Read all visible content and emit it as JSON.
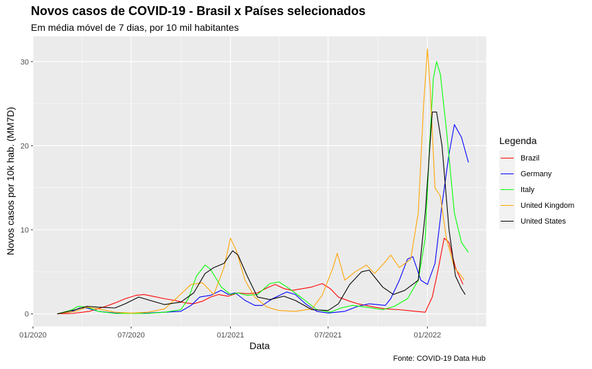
{
  "chart_data": {
    "type": "line",
    "title": "Novos casos de COVID-19 - Brasil x Países selecionados",
    "subtitle": "Em média móvel de 7 dias, por 10 mil habitantes",
    "xlabel": "Data",
    "ylabel": "Novos casos por 10k hab. (MM7D)",
    "caption": "Fonte: COVID-19 Data Hub",
    "legend_title": "Legenda",
    "legend_position": "right",
    "grid": true,
    "xlim": [
      "2020-01-01",
      "2022-04-20"
    ],
    "ylim": [
      -1.5,
      33
    ],
    "x_ticks": [
      {
        "date": "2020-01-01",
        "label": "01/2020"
      },
      {
        "date": "2020-07-01",
        "label": "07/2020"
      },
      {
        "date": "2021-01-01",
        "label": "01/2021"
      },
      {
        "date": "2021-07-01",
        "label": "07/2021"
      },
      {
        "date": "2022-01-01",
        "label": "01/2022"
      }
    ],
    "y_ticks": [
      0,
      10,
      20,
      30
    ],
    "series": [
      {
        "name": "Brazil",
        "color": "#FF0000",
        "points": [
          [
            "2020-02-15",
            0
          ],
          [
            "2020-03-15",
            0.05
          ],
          [
            "2020-04-15",
            0.3
          ],
          [
            "2020-05-15",
            0.9
          ],
          [
            "2020-06-01",
            1.3
          ],
          [
            "2020-06-20",
            1.8
          ],
          [
            "2020-07-10",
            2.2
          ],
          [
            "2020-07-25",
            2.3
          ],
          [
            "2020-08-10",
            2.1
          ],
          [
            "2020-09-01",
            1.8
          ],
          [
            "2020-09-20",
            1.6
          ],
          [
            "2020-10-10",
            1.3
          ],
          [
            "2020-10-25",
            1.2
          ],
          [
            "2020-11-10",
            1.5
          ],
          [
            "2020-11-25",
            2.0
          ],
          [
            "2020-12-10",
            2.3
          ],
          [
            "2020-12-28",
            2.1
          ],
          [
            "2021-01-15",
            2.5
          ],
          [
            "2021-02-01",
            2.4
          ],
          [
            "2021-02-20",
            2.5
          ],
          [
            "2021-03-10",
            3.1
          ],
          [
            "2021-03-25",
            3.5
          ],
          [
            "2021-04-10",
            3.0
          ],
          [
            "2021-04-25",
            2.8
          ],
          [
            "2021-05-15",
            3.0
          ],
          [
            "2021-06-01",
            3.2
          ],
          [
            "2021-06-20",
            3.6
          ],
          [
            "2021-07-05",
            3.0
          ],
          [
            "2021-07-20",
            2.0
          ],
          [
            "2021-08-10",
            1.5
          ],
          [
            "2021-08-25",
            1.2
          ],
          [
            "2021-09-10",
            1.0
          ],
          [
            "2021-09-25",
            0.8
          ],
          [
            "2021-10-15",
            0.6
          ],
          [
            "2021-11-10",
            0.5
          ],
          [
            "2021-12-10",
            0.3
          ],
          [
            "2021-12-28",
            0.2
          ],
          [
            "2022-01-10",
            2.0
          ],
          [
            "2022-01-20",
            5.0
          ],
          [
            "2022-02-01",
            9.0
          ],
          [
            "2022-02-10",
            8.5
          ],
          [
            "2022-02-22",
            5.5
          ],
          [
            "2022-03-01",
            4.5
          ],
          [
            "2022-03-08",
            3.5
          ]
        ]
      },
      {
        "name": "Germany",
        "color": "#0000FF",
        "points": [
          [
            "2020-02-15",
            0
          ],
          [
            "2020-03-10",
            0.2
          ],
          [
            "2020-03-28",
            0.7
          ],
          [
            "2020-04-10",
            0.7
          ],
          [
            "2020-05-01",
            0.3
          ],
          [
            "2020-06-01",
            0.1
          ],
          [
            "2020-07-01",
            0.05
          ],
          [
            "2020-08-01",
            0.1
          ],
          [
            "2020-09-01",
            0.2
          ],
          [
            "2020-10-01",
            0.3
          ],
          [
            "2020-10-20",
            1.0
          ],
          [
            "2020-11-05",
            2.0
          ],
          [
            "2020-11-25",
            2.2
          ],
          [
            "2020-12-15",
            2.8
          ],
          [
            "2020-12-28",
            2.3
          ],
          [
            "2021-01-10",
            2.5
          ],
          [
            "2021-01-28",
            1.6
          ],
          [
            "2021-02-15",
            1.0
          ],
          [
            "2021-03-01",
            1.0
          ],
          [
            "2021-03-20",
            1.8
          ],
          [
            "2021-04-15",
            2.6
          ],
          [
            "2021-05-01",
            2.3
          ],
          [
            "2021-05-20",
            1.2
          ],
          [
            "2021-06-10",
            0.3
          ],
          [
            "2021-07-01",
            0.1
          ],
          [
            "2021-08-01",
            0.3
          ],
          [
            "2021-08-25",
            0.9
          ],
          [
            "2021-09-15",
            1.2
          ],
          [
            "2021-10-15",
            1.0
          ],
          [
            "2021-10-25",
            1.8
          ],
          [
            "2021-11-10",
            4.0
          ],
          [
            "2021-11-25",
            6.5
          ],
          [
            "2021-12-05",
            6.8
          ],
          [
            "2021-12-20",
            4.0
          ],
          [
            "2022-01-01",
            3.5
          ],
          [
            "2022-01-15",
            6.0
          ],
          [
            "2022-01-28",
            13.0
          ],
          [
            "2022-02-10",
            19.0
          ],
          [
            "2022-02-20",
            22.5
          ],
          [
            "2022-03-05",
            21.0
          ],
          [
            "2022-03-18",
            18.0
          ]
        ]
      },
      {
        "name": "Italy",
        "color": "#00FF00",
        "points": [
          [
            "2020-02-15",
            0
          ],
          [
            "2020-03-10",
            0.4
          ],
          [
            "2020-03-25",
            0.9
          ],
          [
            "2020-04-10",
            0.8
          ],
          [
            "2020-05-01",
            0.3
          ],
          [
            "2020-06-01",
            0.05
          ],
          [
            "2020-08-01",
            0.05
          ],
          [
            "2020-09-01",
            0.2
          ],
          [
            "2020-10-01",
            0.5
          ],
          [
            "2020-10-15",
            1.8
          ],
          [
            "2020-10-30",
            4.5
          ],
          [
            "2020-11-15",
            5.8
          ],
          [
            "2020-11-25",
            5.3
          ],
          [
            "2020-12-15",
            3.2
          ],
          [
            "2021-01-01",
            2.3
          ],
          [
            "2021-01-15",
            2.5
          ],
          [
            "2021-02-01",
            2.2
          ],
          [
            "2021-02-20",
            2.3
          ],
          [
            "2021-03-15",
            3.6
          ],
          [
            "2021-04-01",
            3.8
          ],
          [
            "2021-04-20",
            3.0
          ],
          [
            "2021-05-15",
            1.8
          ],
          [
            "2021-06-10",
            0.5
          ],
          [
            "2021-07-05",
            0.2
          ],
          [
            "2021-07-25",
            0.7
          ],
          [
            "2021-08-15",
            1.0
          ],
          [
            "2021-09-10",
            0.8
          ],
          [
            "2021-10-10",
            0.5
          ],
          [
            "2021-11-01",
            0.9
          ],
          [
            "2021-11-25",
            1.8
          ],
          [
            "2021-12-15",
            4.0
          ],
          [
            "2021-12-28",
            9.0
          ],
          [
            "2022-01-05",
            20.0
          ],
          [
            "2022-01-12",
            28.0
          ],
          [
            "2022-01-18",
            30.0
          ],
          [
            "2022-01-25",
            28.5
          ],
          [
            "2022-02-05",
            22.0
          ],
          [
            "2022-02-20",
            12.0
          ],
          [
            "2022-03-05",
            8.5
          ],
          [
            "2022-03-18",
            7.3
          ]
        ]
      },
      {
        "name": "United Kingdom",
        "color": "#FFA500",
        "points": [
          [
            "2020-02-15",
            0
          ],
          [
            "2020-03-20",
            0.3
          ],
          [
            "2020-04-10",
            0.8
          ],
          [
            "2020-05-01",
            0.6
          ],
          [
            "2020-06-01",
            0.2
          ],
          [
            "2020-07-01",
            0.1
          ],
          [
            "2020-08-01",
            0.2
          ],
          [
            "2020-09-01",
            0.6
          ],
          [
            "2020-09-25",
            2.0
          ],
          [
            "2020-10-20",
            3.5
          ],
          [
            "2020-11-10",
            3.7
          ],
          [
            "2020-12-01",
            2.3
          ],
          [
            "2020-12-20",
            5.5
          ],
          [
            "2021-01-01",
            9.0
          ],
          [
            "2021-01-12",
            7.5
          ],
          [
            "2021-01-28",
            4.0
          ],
          [
            "2021-02-15",
            2.0
          ],
          [
            "2021-03-10",
            0.8
          ],
          [
            "2021-04-01",
            0.4
          ],
          [
            "2021-05-01",
            0.3
          ],
          [
            "2021-06-01",
            0.6
          ],
          [
            "2021-06-20",
            2.2
          ],
          [
            "2021-07-10",
            5.5
          ],
          [
            "2021-07-18",
            7.2
          ],
          [
            "2021-08-01",
            4.0
          ],
          [
            "2021-08-20",
            5.0
          ],
          [
            "2021-09-10",
            5.8
          ],
          [
            "2021-09-25",
            4.8
          ],
          [
            "2021-10-15",
            6.2
          ],
          [
            "2021-10-25",
            7.0
          ],
          [
            "2021-11-10",
            5.5
          ],
          [
            "2021-12-01",
            6.5
          ],
          [
            "2021-12-15",
            12.0
          ],
          [
            "2021-12-25",
            25.0
          ],
          [
            "2022-01-01",
            31.5
          ],
          [
            "2022-01-06",
            27.0
          ],
          [
            "2022-01-15",
            15.0
          ],
          [
            "2022-01-25",
            14.0
          ],
          [
            "2022-02-05",
            9.0
          ],
          [
            "2022-02-20",
            5.5
          ],
          [
            "2022-03-05",
            4.5
          ],
          [
            "2022-03-10",
            4.0
          ]
        ]
      },
      {
        "name": "United States",
        "color": "#000000",
        "points": [
          [
            "2020-02-15",
            0
          ],
          [
            "2020-03-20",
            0.5
          ],
          [
            "2020-04-10",
            0.9
          ],
          [
            "2020-05-01",
            0.8
          ],
          [
            "2020-06-01",
            0.7
          ],
          [
            "2020-06-20",
            1.2
          ],
          [
            "2020-07-15",
            2.0
          ],
          [
            "2020-08-05",
            1.6
          ],
          [
            "2020-09-01",
            1.1
          ],
          [
            "2020-10-01",
            1.4
          ],
          [
            "2020-10-25",
            2.5
          ],
          [
            "2020-11-15",
            4.8
          ],
          [
            "2020-12-01",
            5.5
          ],
          [
            "2020-12-20",
            6.0
          ],
          [
            "2021-01-05",
            7.5
          ],
          [
            "2021-01-15",
            7.0
          ],
          [
            "2021-02-01",
            4.5
          ],
          [
            "2021-02-20",
            2.0
          ],
          [
            "2021-03-15",
            1.7
          ],
          [
            "2021-04-10",
            2.1
          ],
          [
            "2021-05-01",
            1.6
          ],
          [
            "2021-06-01",
            0.5
          ],
          [
            "2021-07-01",
            0.4
          ],
          [
            "2021-07-20",
            1.2
          ],
          [
            "2021-08-10",
            3.5
          ],
          [
            "2021-09-01",
            5.0
          ],
          [
            "2021-09-15",
            5.2
          ],
          [
            "2021-10-10",
            3.2
          ],
          [
            "2021-10-30",
            2.3
          ],
          [
            "2021-11-20",
            2.8
          ],
          [
            "2021-12-15",
            4.0
          ],
          [
            "2021-12-28",
            12.0
          ],
          [
            "2022-01-10",
            24.0
          ],
          [
            "2022-01-18",
            24.0
          ],
          [
            "2022-01-28",
            20.0
          ],
          [
            "2022-02-10",
            10.0
          ],
          [
            "2022-02-22",
            4.5
          ],
          [
            "2022-03-05",
            3.0
          ],
          [
            "2022-03-12",
            2.3
          ]
        ]
      }
    ]
  }
}
